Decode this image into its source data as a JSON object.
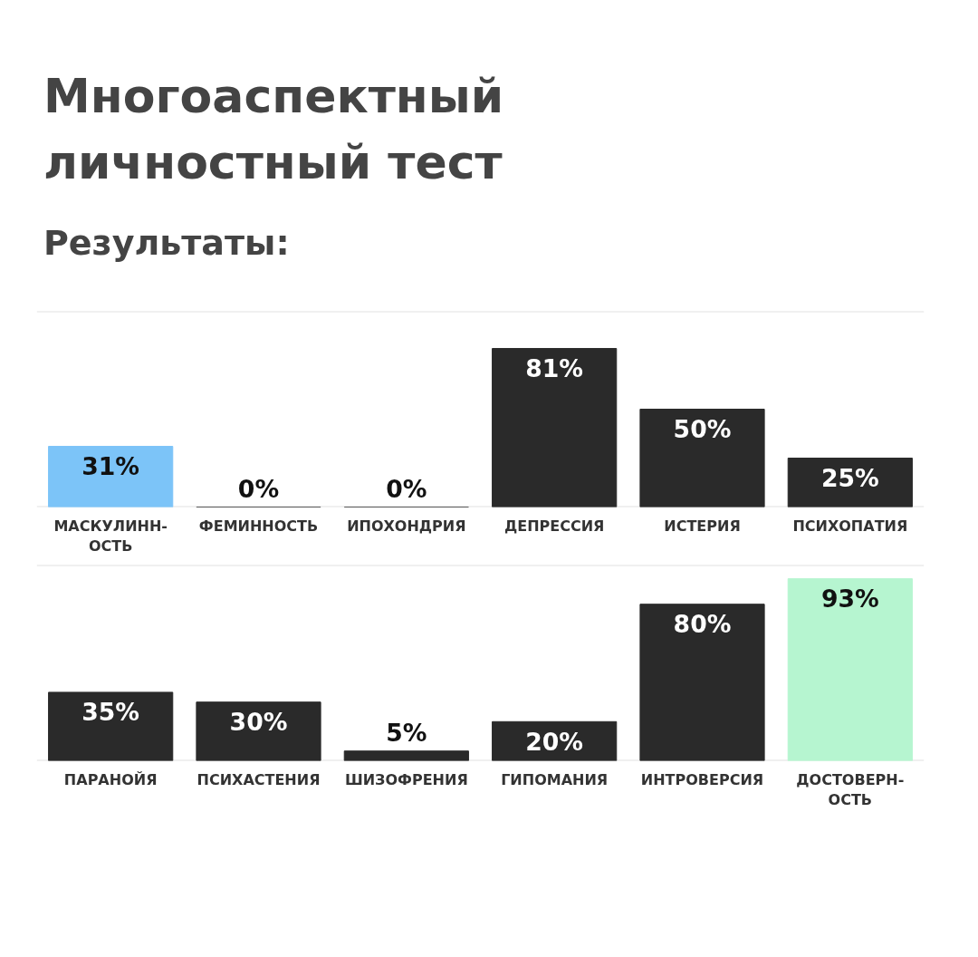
{
  "chart_data": [
    {
      "type": "bar",
      "title": "Многоаспектный личностный тест",
      "subtitle": "Результаты:",
      "categories": [
        "МАСКУЛИНН-\nОСТЬ",
        "ФЕМИННОСТЬ",
        "ИПОХОНДРИЯ",
        "ДЕПРЕССИЯ",
        "ИСТЕРИЯ",
        "ПСИХОПАТИЯ"
      ],
      "values": [
        31,
        0,
        0,
        81,
        50,
        25
      ],
      "colors": [
        "#7cc4f8",
        "#2a2a2a",
        "#2a2a2a",
        "#2a2a2a",
        "#2a2a2a",
        "#2a2a2a"
      ],
      "value_labels": [
        "31%",
        "0%",
        "0%",
        "81%",
        "50%",
        "25%"
      ],
      "ylim": [
        0,
        100
      ],
      "tick_labels": "x"
    },
    {
      "type": "bar",
      "categories": [
        "ПАРАНОЙЯ",
        "ПСИХАСТЕНИЯ",
        "ШИЗОФРЕНИЯ",
        "ГИПОМАНИЯ",
        "ИНТРОВЕРСИЯ",
        "ДОСТОВЕРН-\nОСТЬ"
      ],
      "values": [
        35,
        30,
        5,
        20,
        80,
        93
      ],
      "colors": [
        "#2a2a2a",
        "#2a2a2a",
        "#2a2a2a",
        "#2a2a2a",
        "#2a2a2a",
        "#b6f5d0"
      ],
      "value_labels": [
        "35%",
        "30%",
        "5%",
        "20%",
        "80%",
        "93%"
      ],
      "ylim": [
        0,
        100
      ],
      "tick_labels": "x"
    }
  ]
}
